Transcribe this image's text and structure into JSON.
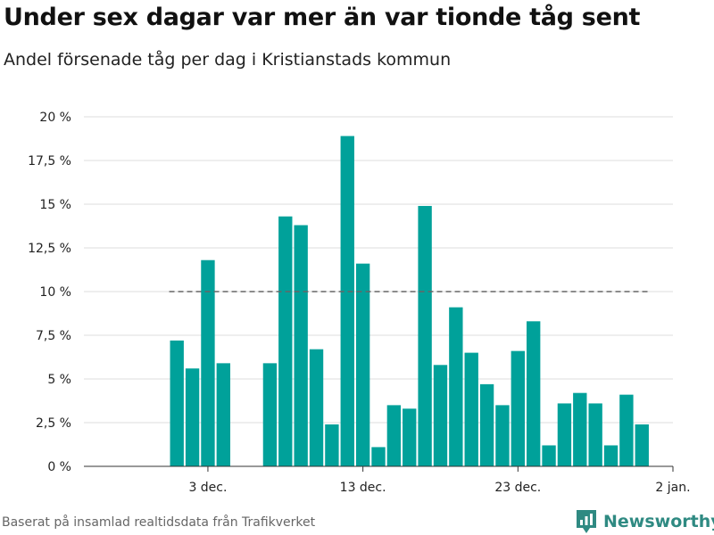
{
  "header": {
    "title": "Under sex dagar var mer än var tionde tåg sent",
    "subtitle": "Andel försenade tåg per dag i Kristianstads kommun"
  },
  "footer": {
    "source": "Baserat på insamlad realtidsdata från Trafikverket",
    "brand": "Newsworthy"
  },
  "colors": {
    "bar": "#00a19a",
    "reference_line": "#666666",
    "grid": "#dddddd",
    "brand": "#2f8a82"
  },
  "icons": {
    "brand_logo": "bar-chart-logo-icon"
  },
  "chart_data": {
    "type": "bar",
    "x": [
      "2019-12-01",
      "2019-12-02",
      "2019-12-03",
      "2019-12-04",
      "2019-12-05",
      "2019-12-06",
      "2019-12-07",
      "2019-12-08",
      "2019-12-09",
      "2019-12-10",
      "2019-12-11",
      "2019-12-12",
      "2019-12-13",
      "2019-12-14",
      "2019-12-15",
      "2019-12-16",
      "2019-12-17",
      "2019-12-18",
      "2019-12-19",
      "2019-12-20",
      "2019-12-21",
      "2019-12-22",
      "2019-12-23",
      "2019-12-24",
      "2019-12-25",
      "2019-12-26",
      "2019-12-27",
      "2019-12-28",
      "2019-12-29",
      "2019-12-30",
      "2019-12-31"
    ],
    "values": [
      7.2,
      5.6,
      11.8,
      5.9,
      null,
      null,
      5.9,
      14.3,
      13.8,
      6.7,
      2.4,
      18.9,
      11.6,
      1.1,
      3.5,
      3.3,
      14.9,
      5.8,
      9.1,
      6.5,
      4.7,
      3.5,
      6.6,
      8.3,
      1.2,
      3.6,
      4.2,
      3.6,
      1.2,
      4.1,
      2.4
    ],
    "reference_line": {
      "value": 10,
      "start": "2019-12-01",
      "end": "2019-12-31",
      "style": "dashed"
    },
    "xticks": [
      {
        "date": "2019-12-03",
        "label": "3 dec."
      },
      {
        "date": "2019-12-13",
        "label": "13 dec."
      },
      {
        "date": "2019-12-23",
        "label": "23 dec."
      },
      {
        "date": "2020-01-02",
        "label": "2 jan."
      }
    ],
    "xlim": [
      "2019-11-25",
      "2020-01-02"
    ],
    "yticks": [
      {
        "value": 0,
        "label": "0 %"
      },
      {
        "value": 2.5,
        "label": "2,5 %"
      },
      {
        "value": 5,
        "label": "5 %"
      },
      {
        "value": 7.5,
        "label": "7,5 %"
      },
      {
        "value": 10,
        "label": "10 %"
      },
      {
        "value": 12.5,
        "label": "12,5 %"
      },
      {
        "value": 15,
        "label": "15 %"
      },
      {
        "value": 17.5,
        "label": "17,5 %"
      },
      {
        "value": 20,
        "label": "20 %"
      }
    ],
    "ylim": [
      0,
      20
    ],
    "grid": true,
    "legend": "none"
  }
}
